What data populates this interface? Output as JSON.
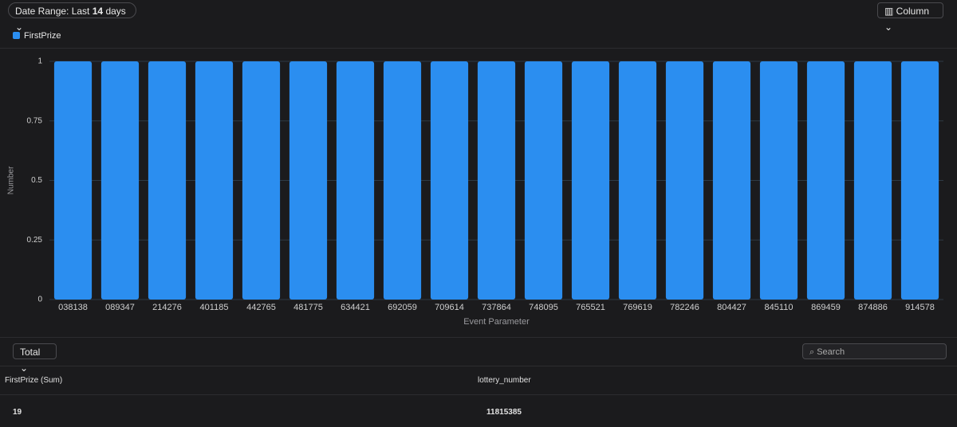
{
  "toolbar": {
    "date_range_prefix": "Date Range: Last",
    "date_range_count": 14,
    "date_range_unit": "days",
    "chart_type": "Column"
  },
  "chart_data": {
    "type": "bar",
    "categories": [
      "038138",
      "089347",
      "214276",
      "401185",
      "442765",
      "481775",
      "634421",
      "692059",
      "709614",
      "737864",
      "748095",
      "765521",
      "769619",
      "782246",
      "804427",
      "845110",
      "869459",
      "874886",
      "914578"
    ],
    "series": [
      {
        "name": "FirstPrize",
        "color": "#2b8ef0",
        "values": [
          1,
          1,
          1,
          1,
          1,
          1,
          1,
          1,
          1,
          1,
          1,
          1,
          1,
          1,
          1,
          1,
          1,
          1,
          1
        ]
      }
    ],
    "ylim": [
      0,
      1
    ],
    "yticks": [
      0,
      0.25,
      0.5,
      0.75,
      1
    ],
    "grid": true,
    "x_label": "Event Parameter",
    "y_label": "Number"
  },
  "table_controls": {
    "aggregate": "Total",
    "search_placeholder": "Search"
  },
  "table": {
    "columns": [
      "FirstPrize (Sum)",
      "lottery_number"
    ],
    "rows": [
      [
        19,
        11815385
      ]
    ]
  }
}
